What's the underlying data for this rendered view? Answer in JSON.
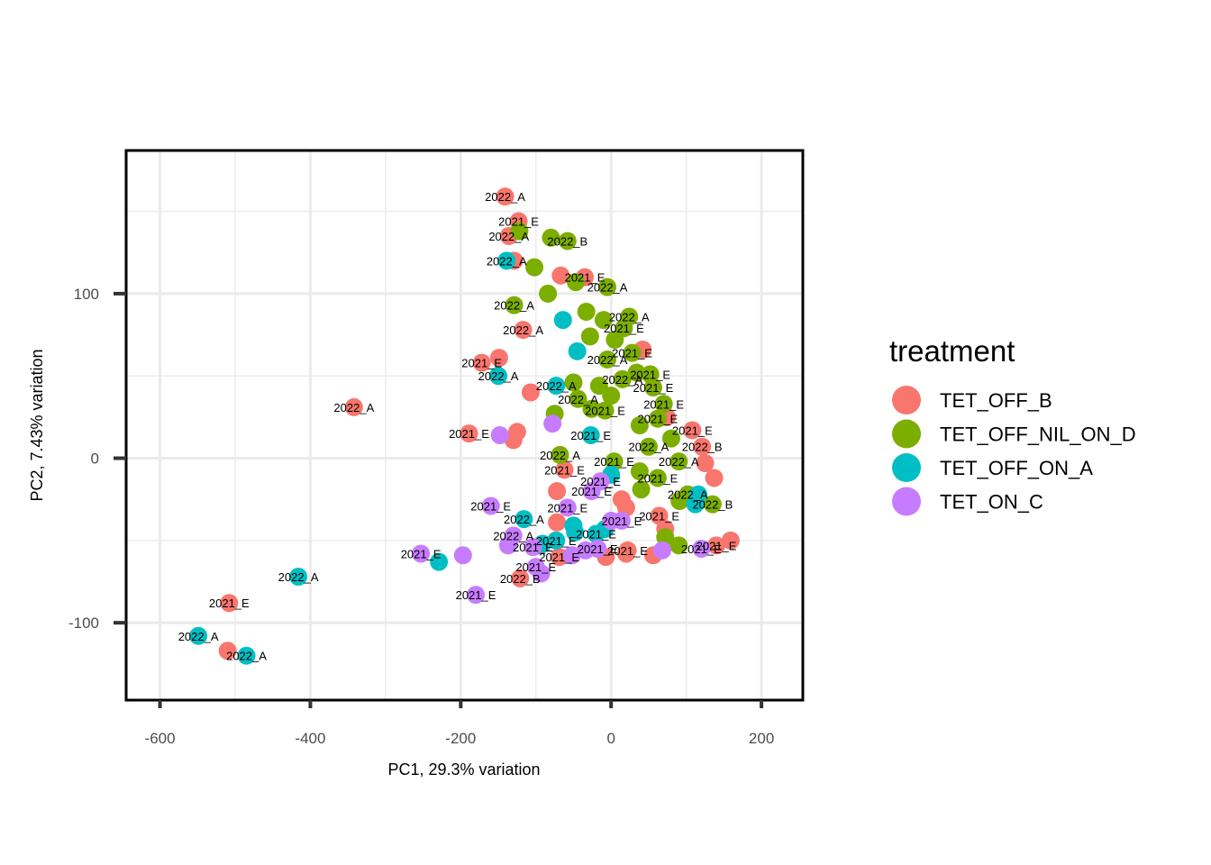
{
  "chart_data": {
    "type": "scatter",
    "xlabel": "PC1, 29.3% variation",
    "ylabel": "PC2, 7.43% variation",
    "xlim": [
      -645,
      255
    ],
    "ylim": [
      -147,
      187
    ],
    "x_ticks": [
      -600,
      -400,
      -200,
      0,
      200
    ],
    "y_ticks": [
      -100,
      0,
      100
    ],
    "x_tick_labels": [
      "-600",
      "-400",
      "-200",
      "0",
      "200"
    ],
    "y_tick_labels": [
      "-100",
      "0",
      "100"
    ],
    "grid": true,
    "legend_position": "right",
    "legend": {
      "title": "treatment",
      "entries": [
        "TET_OFF_B",
        "TET_OFF_NIL_ON_D",
        "TET_OFF_ON_A",
        "TET_ON_C"
      ]
    },
    "colors": {
      "TET_OFF_B": "#F8766D",
      "TET_OFF_NIL_ON_D": "#7CAE00",
      "TET_OFF_ON_A": "#00BFC4",
      "TET_ON_C": "#C77CFF"
    },
    "series": [
      {
        "name": "TET_OFF_B",
        "points": [
          {
            "x": -141,
            "y": 159,
            "label": "2022_A"
          },
          {
            "x": -123,
            "y": 144,
            "label": "2021_E"
          },
          {
            "x": -136,
            "y": 135,
            "label": "2022_A"
          },
          {
            "x": -129,
            "y": 120
          },
          {
            "x": -67,
            "y": 111
          },
          {
            "x": -35,
            "y": 110,
            "label": "2021_E"
          },
          {
            "x": -117,
            "y": 78,
            "label": "2022_A"
          },
          {
            "x": 42,
            "y": 66
          },
          {
            "x": -172,
            "y": 58,
            "label": "2021_E"
          },
          {
            "x": -149,
            "y": 61
          },
          {
            "x": -107,
            "y": 40
          },
          {
            "x": -342,
            "y": 31,
            "label": "2022_A"
          },
          {
            "x": -189,
            "y": 15,
            "label": "2021_E"
          },
          {
            "x": -125,
            "y": 16
          },
          {
            "x": -130,
            "y": 11
          },
          {
            "x": 108,
            "y": 17,
            "label": "2021_E"
          },
          {
            "x": 74,
            "y": 25
          },
          {
            "x": 121,
            "y": 7,
            "label": "2022_B"
          },
          {
            "x": -62,
            "y": -7,
            "label": "2021_E"
          },
          {
            "x": 125,
            "y": -3
          },
          {
            "x": 137,
            "y": -12
          },
          {
            "x": -72,
            "y": -20
          },
          {
            "x": 14,
            "y": -25
          },
          {
            "x": 20,
            "y": -30
          },
          {
            "x": 64,
            "y": -35,
            "label": "2021_E"
          },
          {
            "x": -72,
            "y": -39
          },
          {
            "x": 72,
            "y": -43
          },
          {
            "x": 159,
            "y": -50
          },
          {
            "x": 140,
            "y": -53,
            "label": "2021_E"
          },
          {
            "x": 22,
            "y": -56,
            "label": "2021_E"
          },
          {
            "x": -69,
            "y": -60,
            "label": "2021_E"
          },
          {
            "x": -7,
            "y": -60
          },
          {
            "x": 20,
            "y": -58
          },
          {
            "x": 56,
            "y": -59
          },
          {
            "x": -121,
            "y": -73,
            "label": "2022_B"
          },
          {
            "x": -508,
            "y": -88,
            "label": "2021_E"
          },
          {
            "x": -510,
            "y": -117
          }
        ]
      },
      {
        "name": "TET_OFF_NIL_ON_D",
        "points": [
          {
            "x": -122,
            "y": 138
          },
          {
            "x": -80,
            "y": 134
          },
          {
            "x": -58,
            "y": 132,
            "label": "2022_B"
          },
          {
            "x": -102,
            "y": 116
          },
          {
            "x": -47,
            "y": 107
          },
          {
            "x": -5,
            "y": 104,
            "label": "2022_A"
          },
          {
            "x": -84,
            "y": 100
          },
          {
            "x": -129,
            "y": 93,
            "label": "2022_A"
          },
          {
            "x": -33,
            "y": 89
          },
          {
            "x": 24,
            "y": 86,
            "label": "2022_A"
          },
          {
            "x": -10,
            "y": 84
          },
          {
            "x": 17,
            "y": 79,
            "label": "2021_E"
          },
          {
            "x": -28,
            "y": 74
          },
          {
            "x": 5,
            "y": 72
          },
          {
            "x": 28,
            "y": 64,
            "label": "2021_E"
          },
          {
            "x": -5,
            "y": 60,
            "label": "2022_A"
          },
          {
            "x": 34,
            "y": 52
          },
          {
            "x": 52,
            "y": 51,
            "label": "2021_E"
          },
          {
            "x": 15,
            "y": 48,
            "label": "2022_A"
          },
          {
            "x": -50,
            "y": 46
          },
          {
            "x": -16,
            "y": 44
          },
          {
            "x": 56,
            "y": 43,
            "label": "2021_E"
          },
          {
            "x": -44,
            "y": 36,
            "label": "2022_A"
          },
          {
            "x": 0,
            "y": 38
          },
          {
            "x": 70,
            "y": 33,
            "label": "2021_E"
          },
          {
            "x": -26,
            "y": 30
          },
          {
            "x": -8,
            "y": 29,
            "label": "2021_E"
          },
          {
            "x": -75,
            "y": 27
          },
          {
            "x": 62,
            "y": 24,
            "label": "2021_E"
          },
          {
            "x": 38,
            "y": 20
          },
          {
            "x": 80,
            "y": 12
          },
          {
            "x": 50,
            "y": 7,
            "label": "2022_A"
          },
          {
            "x": -68,
            "y": 2,
            "label": "2022_A"
          },
          {
            "x": 90,
            "y": -2,
            "label": "2022_A"
          },
          {
            "x": 4,
            "y": -2,
            "label": "2021_E"
          },
          {
            "x": 38,
            "y": -8
          },
          {
            "x": 62,
            "y": -12,
            "label": "2021_E"
          },
          {
            "x": 40,
            "y": -19
          },
          {
            "x": 102,
            "y": -22,
            "label": "2022_A"
          },
          {
            "x": 135,
            "y": -28,
            "label": "2022_B"
          },
          {
            "x": 91,
            "y": -26
          },
          {
            "x": 72,
            "y": -48
          },
          {
            "x": 90,
            "y": -53
          }
        ]
      },
      {
        "name": "TET_OFF_ON_A",
        "points": [
          {
            "x": -139,
            "y": 120,
            "label": "2022_A"
          },
          {
            "x": -64,
            "y": 84
          },
          {
            "x": -45,
            "y": 65
          },
          {
            "x": -150,
            "y": 50,
            "label": "2022_A"
          },
          {
            "x": -73,
            "y": 44,
            "label": "2022_A"
          },
          {
            "x": -27,
            "y": 14,
            "label": "2021_E"
          },
          {
            "x": 0,
            "y": -10
          },
          {
            "x": 116,
            "y": -22
          },
          {
            "x": 112,
            "y": -28
          },
          {
            "x": -116,
            "y": -37,
            "label": "2022_A"
          },
          {
            "x": -50,
            "y": -41
          },
          {
            "x": -48,
            "y": -45
          },
          {
            "x": -20,
            "y": -46,
            "label": "2021_E"
          },
          {
            "x": -8,
            "y": -43
          },
          {
            "x": -91,
            "y": -52
          },
          {
            "x": -73,
            "y": -50,
            "label": "2021_E"
          },
          {
            "x": -416,
            "y": -72,
            "label": "2022_A"
          },
          {
            "x": -229,
            "y": -63
          },
          {
            "x": -549,
            "y": -108,
            "label": "2022_A"
          },
          {
            "x": -485,
            "y": -120,
            "label": "2022_A"
          }
        ]
      },
      {
        "name": "TET_ON_C",
        "points": [
          {
            "x": -78,
            "y": 21
          },
          {
            "x": -148,
            "y": 14
          },
          {
            "x": -58,
            "y": -30,
            "label": "2021_E"
          },
          {
            "x": -14,
            "y": -14,
            "label": "2021_E"
          },
          {
            "x": -26,
            "y": -20,
            "label": "2021_E"
          },
          {
            "x": -160,
            "y": -29,
            "label": "2021_E"
          },
          {
            "x": 14,
            "y": -38,
            "label": "2021_E"
          },
          {
            "x": 0,
            "y": -38
          },
          {
            "x": -130,
            "y": -47,
            "label": "2022_A"
          },
          {
            "x": -137,
            "y": -53
          },
          {
            "x": -104,
            "y": -54,
            "label": "2021_E"
          },
          {
            "x": -253,
            "y": -58,
            "label": "2021_E"
          },
          {
            "x": -197,
            "y": -59
          },
          {
            "x": -52,
            "y": -59
          },
          {
            "x": -34,
            "y": -56
          },
          {
            "x": -18,
            "y": -55,
            "label": "2021_E"
          },
          {
            "x": 120,
            "y": -55,
            "label": "2021_E"
          },
          {
            "x": 68,
            "y": -56
          },
          {
            "x": -100,
            "y": -66,
            "label": "2021_E"
          },
          {
            "x": -93,
            "y": -70
          },
          {
            "x": -180,
            "y": -83,
            "label": "2021_E"
          }
        ]
      }
    ]
  }
}
